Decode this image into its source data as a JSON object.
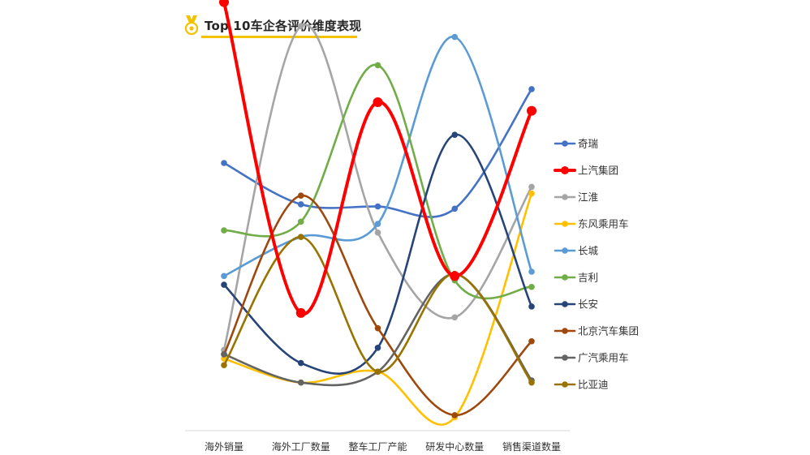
{
  "title": "Top 10车企各评价维度表现",
  "chart_data": {
    "type": "line",
    "smooth": true,
    "title": "Top 10车企各评价维度表现",
    "xlabel": "",
    "ylabel": "",
    "categories": [
      "海外销量",
      "海外工厂数量",
      "整车工厂产能",
      "研发中心数量",
      "销售渠道数量"
    ],
    "ylim": [
      0,
      10
    ],
    "grid": false,
    "y_axis_shown": false,
    "legend_position": "right",
    "series": [
      {
        "name": "奇瑞",
        "color": "#4472c4",
        "emphasis": false,
        "values": [
          6.25,
          5.3,
          5.25,
          5.2,
          7.95
        ]
      },
      {
        "name": "上汽集团",
        "color": "#ff0000",
        "emphasis": true,
        "values": [
          9.95,
          2.8,
          7.65,
          3.65,
          7.45
        ]
      },
      {
        "name": "江淮",
        "color": "#a5a5a5",
        "emphasis": false,
        "values": [
          1.95,
          9.4,
          4.65,
          2.7,
          5.7
        ]
      },
      {
        "name": "东风乘用车",
        "color": "#ffc000",
        "emphasis": false,
        "values": [
          1.75,
          1.2,
          1.45,
          0.4,
          5.55
        ]
      },
      {
        "name": "长城",
        "color": "#5b9bd5",
        "emphasis": false,
        "values": [
          3.65,
          4.55,
          4.85,
          9.15,
          3.75
        ]
      },
      {
        "name": "吉利",
        "color": "#70ad47",
        "emphasis": false,
        "values": [
          4.7,
          4.9,
          8.5,
          3.55,
          3.4
        ]
      },
      {
        "name": "长安",
        "color": "#264478",
        "emphasis": false,
        "values": [
          3.45,
          1.65,
          2.0,
          6.9,
          2.95
        ]
      },
      {
        "name": "北京汽车集团",
        "color": "#9e480e",
        "emphasis": false,
        "values": [
          1.85,
          5.5,
          2.45,
          0.45,
          2.15
        ]
      },
      {
        "name": "广汽乘用车",
        "color": "#636363",
        "emphasis": false,
        "values": [
          1.85,
          1.2,
          1.45,
          3.7,
          1.25
        ]
      },
      {
        "name": "比亚迪",
        "color": "#997300",
        "emphasis": false,
        "values": [
          1.6,
          4.55,
          1.45,
          3.7,
          1.2
        ]
      }
    ]
  },
  "icons": {
    "title_icon": "medal-icon"
  },
  "accent_color": "#f2c200"
}
